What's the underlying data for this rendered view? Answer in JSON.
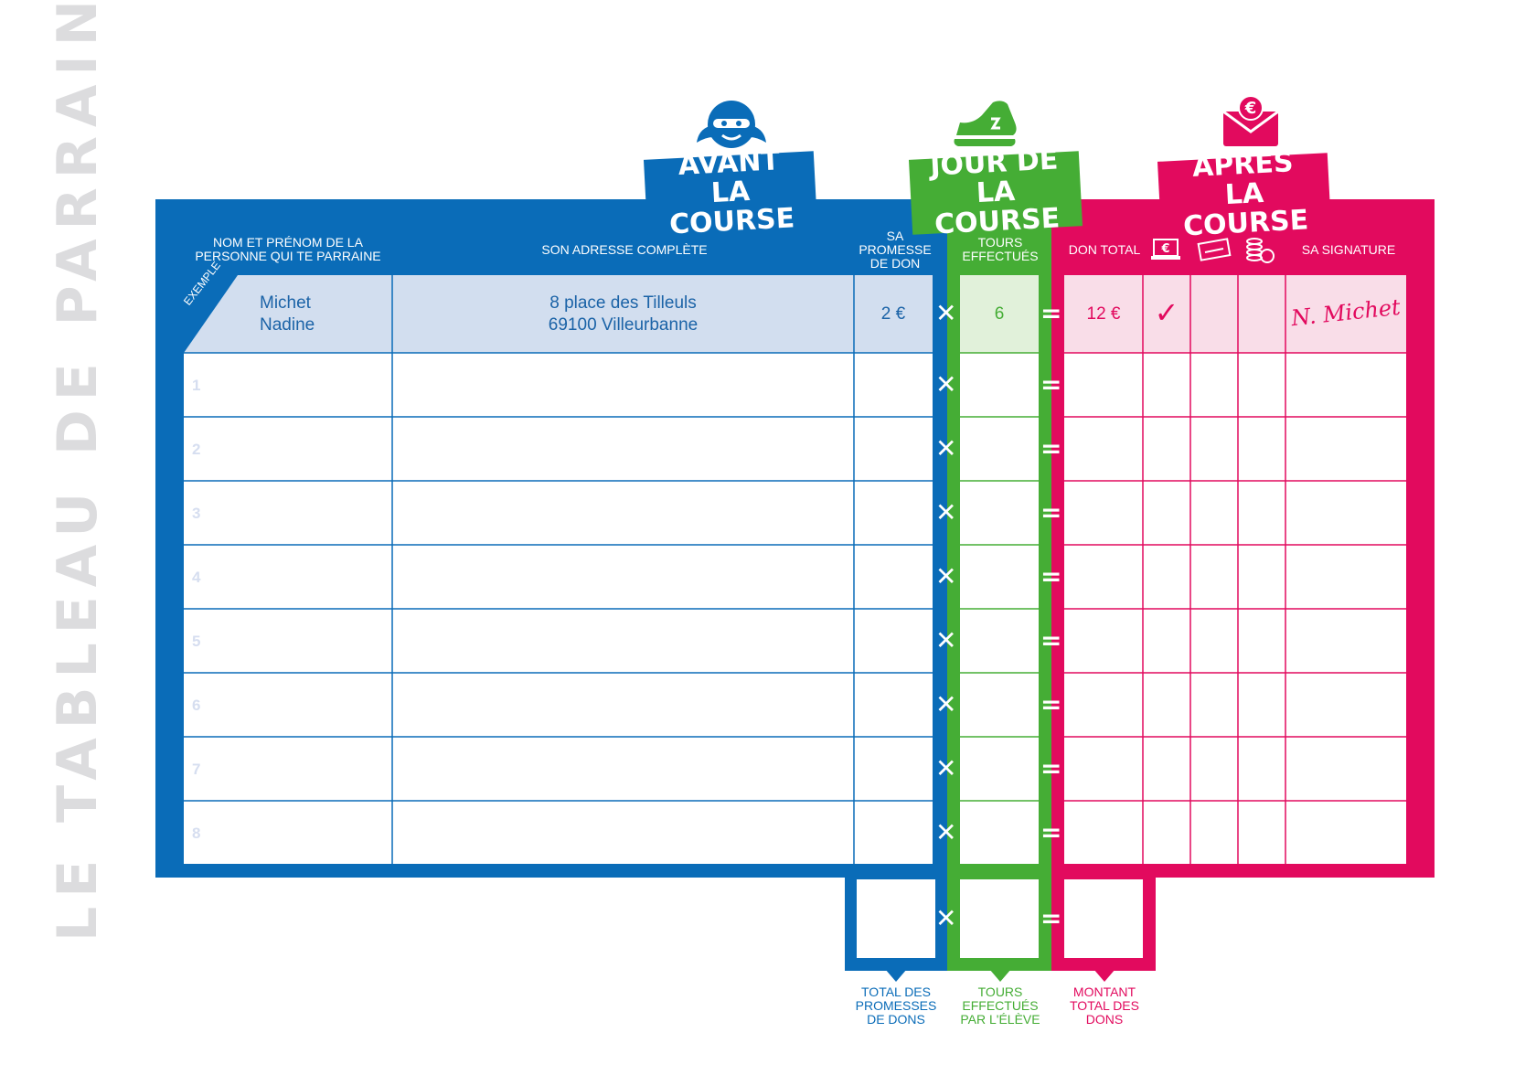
{
  "side_title": "LE TABLEAU DE PARRAINAGE",
  "sections": {
    "avant": {
      "line1": "AVANT",
      "line2": "LA COURSE",
      "color": "#0a6cb8"
    },
    "jour": {
      "line1": "JOUR DE",
      "line2": "LA COURSE",
      "color": "#45ad35"
    },
    "apres": {
      "line1": "APRÈS",
      "line2": "LA COURSE",
      "color": "#e20a5e"
    }
  },
  "icons": {
    "avant": "student-face-icon",
    "jour": "sneaker-icon",
    "apres": "euro-envelope-icon"
  },
  "headers": {
    "nom": [
      "NOM ET PRÉNOM DE LA",
      "PERSONNE QUI TE PARRAINE"
    ],
    "adresse": "SON ADRESSE COMPLÈTE",
    "promesse": [
      "SA",
      "PROMESSE",
      "DE DON"
    ],
    "tours": [
      "TOURS",
      "EFFECTUÉS"
    ],
    "don_total": "DON TOTAL",
    "signature": "SA SIGNATURE",
    "payment_icons": [
      "online-payment-icon",
      "cheque-icon",
      "coins-icon"
    ]
  },
  "example": {
    "badge": "EXEMPLE",
    "nom": "Michet",
    "prenom": "Nadine",
    "adresse_l1": "8 place des Tilleuls",
    "adresse_l2": "69100 Villeurbanne",
    "promesse": "2 €",
    "tours": "6",
    "don_total": "12 €",
    "check": "✓",
    "signature": "N. Michet"
  },
  "rows": [
    "1",
    "2",
    "3",
    "4",
    "5",
    "6",
    "7",
    "8"
  ],
  "operators": {
    "multiply": "✕",
    "equals": "="
  },
  "footer": {
    "promesses": [
      "TOTAL DES",
      "PROMESSES",
      "DE DONS"
    ],
    "tours": [
      "TOURS",
      "EFFECTUÉS",
      "PAR L'ÉLÈVE"
    ],
    "montant": [
      "MONTANT",
      "TOTAL DES",
      "DONS"
    ]
  }
}
